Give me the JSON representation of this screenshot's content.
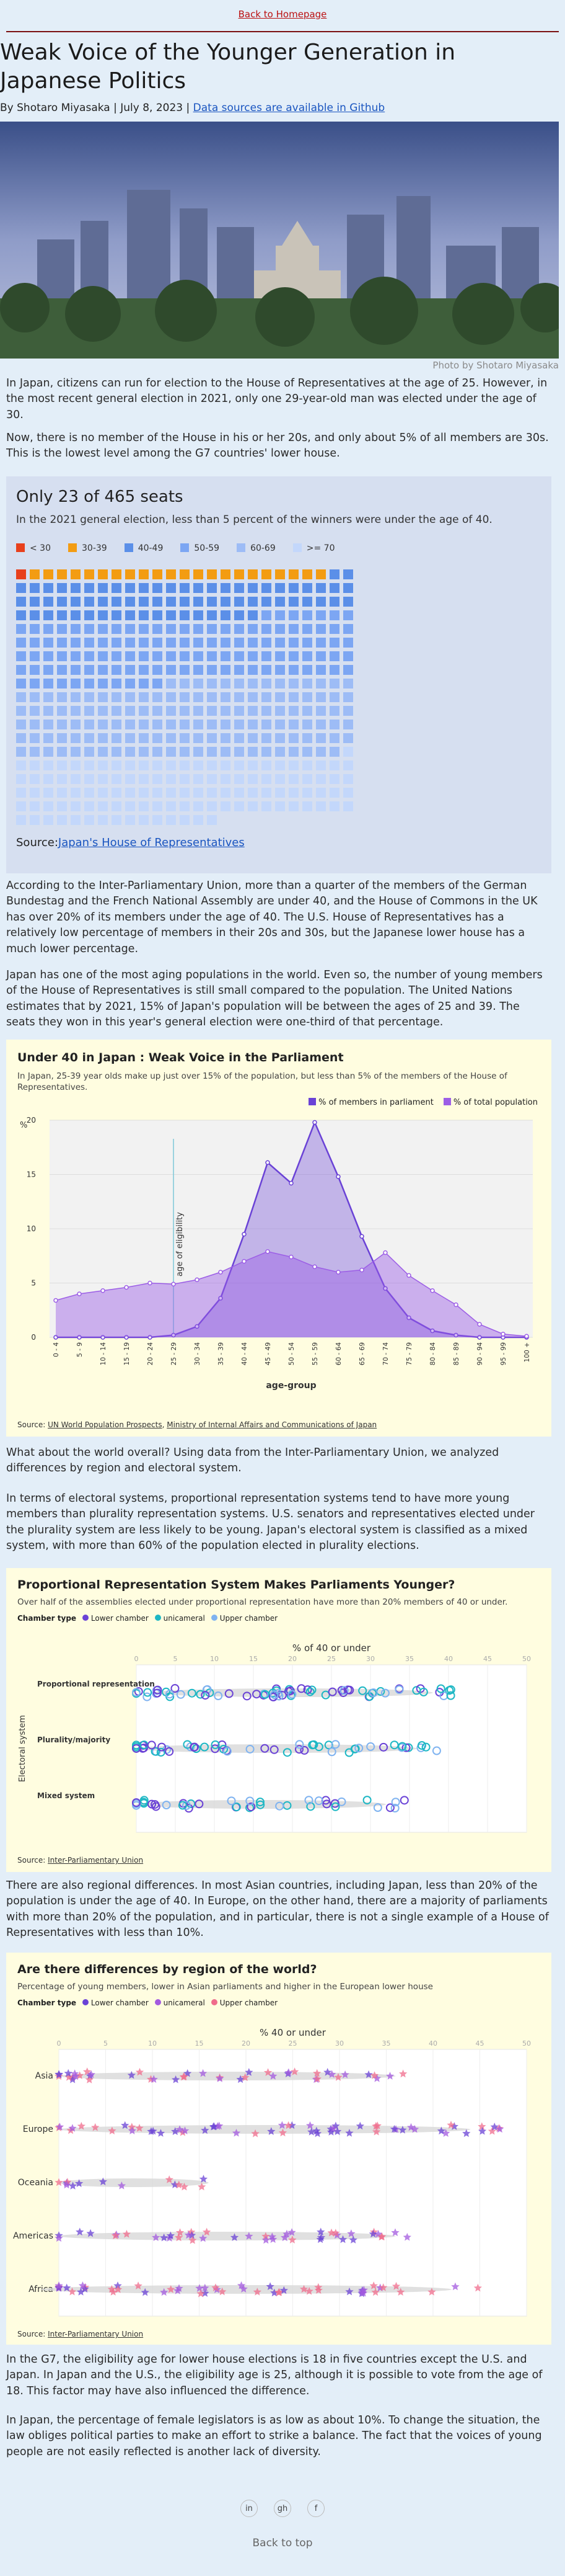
{
  "nav": {
    "back_home": "Back to Homepage",
    "back_top": "Back to top"
  },
  "article": {
    "title": "Weak Voice of the Younger Generation in Japanese Politics",
    "byline": "By Shotaro Miyasaka | July 8, 2023 |",
    "byline_link": "Data sources are available in Github",
    "photo_caption": "Photo by Shotaro Miyasaka",
    "p1": "In Japan, citizens can run for election to the House of Representatives at the age of 25. However, in the most recent general election in 2021, only one 29-year-old man was elected under the age of 30.",
    "p2": "Now, there is no member of the House in his or her 20s, and only about 5% of all members are 30s. This is the lowest level among the G7 countries' lower house.",
    "p3": "According to the Inter-Parliamentary Union, more than a quarter of the members of the German Bundestag and the French National Assembly are under 40, and the House of Commons in the UK has over 20% of its members under the age of 40. The U.S. House of Representatives has a relatively low percentage of members in their 20s and 30s, but the Japanese lower house has a much lower percentage.",
    "p4": "Japan has one of the most aging populations in the world. Even so, the number of young members of the House of Representatives is still small compared to the population. The United Nations estimates that by 2021, 15% of Japan's population will be between the ages of 25 and 39. The seats they won in this year's general election were one-third of that percentage.",
    "p5": "What about the world overall? Using data from the Inter-Parliamentary Union, we analyzed differences by region and electoral system.",
    "p6": "In terms of electoral systems, proportional representation systems tend to have more young members than plurality representation systems. U.S. senators and representatives elected under the plurality system are less likely to be young. Japan's electoral system is classified as a mixed system, with more than 60% of the population elected in plurality elections.",
    "p7": "There are also regional differences. In most Asian countries, including Japan, less than 20% of the population is under the age of 40. In Europe, on the other hand, there are a majority of parliaments with more than 20% of the population, and in particular, there is not a single example of a House of Representatives with less than 10%.",
    "p8": "In the G7, the eligibility age for lower house elections is 18 in five countries except the U.S. and Japan. In Japan and the U.S., the eligibility age is 25, although it is possible to vote from the age of 18. This factor may have also influenced the difference.",
    "p9": "In Japan, the percentage of female legislators is as low as about 10%. To change the situation, the law obliges political parties to make an effort to strike a balance. The fact that the voices of young people are not easily reflected is another lack of diversity."
  },
  "waffle": {
    "title": "Only 23 of 465 seats",
    "subtitle": "In the 2021 general election, less than 5 percent of the winners were under the age of 40.",
    "source_label": "Source:",
    "source_link": "Japan's House of Representatives",
    "colors": {
      "lt30": "#e8401c",
      "30s": "#f39c12",
      "40s": "#5b8fe8",
      "50s": "#7ca6f3",
      "60s": "#9dbcf6",
      "70plus": "#c3d7fb"
    },
    "legend": [
      "< 30",
      "30-39",
      "40-49",
      "50-59",
      "60-69",
      ">= 70"
    ]
  },
  "chart_data": [
    {
      "type": "area",
      "title": "Under 40 in Japan : Weak Voice in the Parliament",
      "subtitle": "In Japan, 25-39 year olds make up just over 15% of the population, but less than 5% of the members of the House of Representatives.",
      "ylabel": "%",
      "xlabel": "age-group",
      "ylim": [
        0,
        20
      ],
      "annotation": "age of eligibility",
      "categories": [
        "0 - 4",
        "5 - 9",
        "10 - 14",
        "15 - 19",
        "20 - 24",
        "25 - 29",
        "30 - 34",
        "35 - 39",
        "40 - 44",
        "45 - 49",
        "50 - 54",
        "55 - 59",
        "60 - 64",
        "65 - 69",
        "70 - 74",
        "75 - 79",
        "80 - 84",
        "85 - 89",
        "90 - 94",
        "95 - 99",
        "100 +"
      ],
      "series": [
        {
          "name": "% of members in parliament",
          "color": "#6a42d6",
          "values": [
            0,
            0,
            0,
            0,
            0,
            0.2,
            1.0,
            3.6,
            9.5,
            16.1,
            14.2,
            19.8,
            14.8,
            9.3,
            4.5,
            1.8,
            0.6,
            0.2,
            0,
            0,
            0
          ]
        },
        {
          "name": "% of total population",
          "color": "#9c5ee6",
          "values": [
            3.4,
            4.0,
            4.3,
            4.6,
            5.0,
            4.9,
            5.3,
            6.0,
            7.0,
            7.9,
            7.4,
            6.5,
            6.0,
            6.2,
            7.8,
            5.7,
            4.3,
            3.0,
            1.2,
            0.3,
            0.1
          ]
        }
      ],
      "source_label": "Source:",
      "source_links": [
        "UN World Population Prospects",
        "Ministry of Internal Affairs and Communications of Japan"
      ]
    },
    {
      "type": "scatter",
      "title": "Proportional Representation System Makes Parliaments Younger?",
      "subtitle": "Over half of the assemblies elected under proportional representation have more than 20% members of 40 or under.",
      "legend_title": "Chamber type",
      "legend": [
        "Lower chamber",
        "unicameral",
        "Upper chamber"
      ],
      "colors": {
        "lower": "#6a42d6",
        "unicameral": "#1db7c4",
        "upper": "#f06c8c"
      },
      "xlabel": "% of 40 or under",
      "ylabel": "Electoral system",
      "xlim": [
        0,
        50
      ],
      "x_ticks": [
        "0",
        "5",
        "10",
        "15",
        "20",
        "25",
        "30",
        "35",
        "40",
        "45",
        "50"
      ],
      "categories": [
        "Proportional representation",
        "Plurality/majority",
        "Mixed system"
      ],
      "source_label": "Source:",
      "source_link": "Inter-Parliamentary Union"
    },
    {
      "type": "scatter",
      "title": "Are there differences by region of the world?",
      "subtitle": "Percentage of young members, lower in Asian parliaments and higher in the European lower house",
      "legend_title": "Chamber type",
      "legend": [
        "Lower chamber",
        "unicameral",
        "Upper chamber"
      ],
      "colors": {
        "lower": "#6a42d6",
        "unicameral": "#a35adf",
        "upper": "#f06c8c"
      },
      "xlabel": "% 40 or under",
      "xlim": [
        0,
        50
      ],
      "x_ticks": [
        "0",
        "5",
        "10",
        "15",
        "20",
        "25",
        "30",
        "35",
        "40",
        "45",
        "50"
      ],
      "categories": [
        "Asia",
        "Europe",
        "Oceania",
        "Americas",
        "Africa"
      ],
      "source_label": "Source:",
      "source_link": "Inter-Parliamentary Union"
    }
  ],
  "footer": {
    "icons": [
      "linkedin-icon",
      "github-icon",
      "facebook-icon"
    ],
    "icon_glyphs": [
      "in",
      "gh",
      "f"
    ]
  }
}
